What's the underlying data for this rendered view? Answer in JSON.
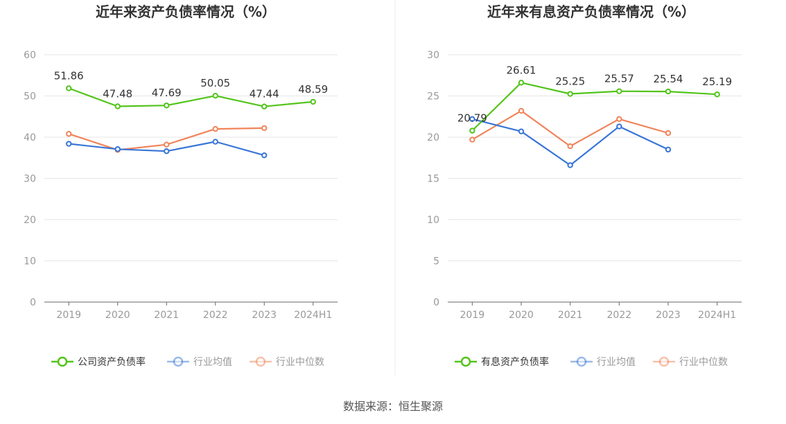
{
  "source": "数据来源：恒生聚源",
  "chart_data": [
    {
      "type": "line",
      "title": "近年来资产负债率情况（%）",
      "categories": [
        "2019",
        "2020",
        "2021",
        "2022",
        "2023",
        "2024H1"
      ],
      "ylim": [
        0,
        60
      ],
      "yticks": [
        0,
        10,
        20,
        30,
        40,
        50,
        60
      ],
      "grid": true,
      "legend_position": "bottom",
      "series": [
        {
          "name": "公司资产负债率",
          "color": "#52c41a",
          "values": [
            51.86,
            47.48,
            47.69,
            50.05,
            47.44,
            48.59
          ],
          "labels": [
            "51.86",
            "47.48",
            "47.69",
            "50.05",
            "47.44",
            "48.59"
          ]
        },
        {
          "name": "行业均值",
          "color": "#3875d7",
          "values": [
            38.4,
            37.1,
            36.6,
            38.9,
            35.6,
            null
          ]
        },
        {
          "name": "行业中位数",
          "color": "#f0845a",
          "values": [
            40.8,
            36.9,
            38.2,
            42.0,
            42.2,
            null
          ]
        }
      ]
    },
    {
      "type": "line",
      "title": "近年来有息资产负债率情况（%）",
      "categories": [
        "2019",
        "2020",
        "2021",
        "2022",
        "2023",
        "2024H1"
      ],
      "ylim": [
        0,
        30
      ],
      "yticks": [
        0,
        5,
        10,
        15,
        20,
        25,
        30
      ],
      "grid": true,
      "legend_position": "bottom",
      "series": [
        {
          "name": "有息资产负债率",
          "color": "#52c41a",
          "values": [
            20.79,
            26.61,
            25.25,
            25.57,
            25.54,
            25.19
          ],
          "labels": [
            "20.79",
            "26.61",
            "25.25",
            "25.57",
            "25.54",
            "25.19"
          ]
        },
        {
          "name": "行业均值",
          "color": "#3875d7",
          "values": [
            22.2,
            20.7,
            16.6,
            21.3,
            18.5,
            null
          ]
        },
        {
          "name": "行业中位数",
          "color": "#f0845a",
          "values": [
            19.7,
            23.2,
            18.9,
            22.2,
            20.5,
            null
          ]
        }
      ]
    }
  ]
}
